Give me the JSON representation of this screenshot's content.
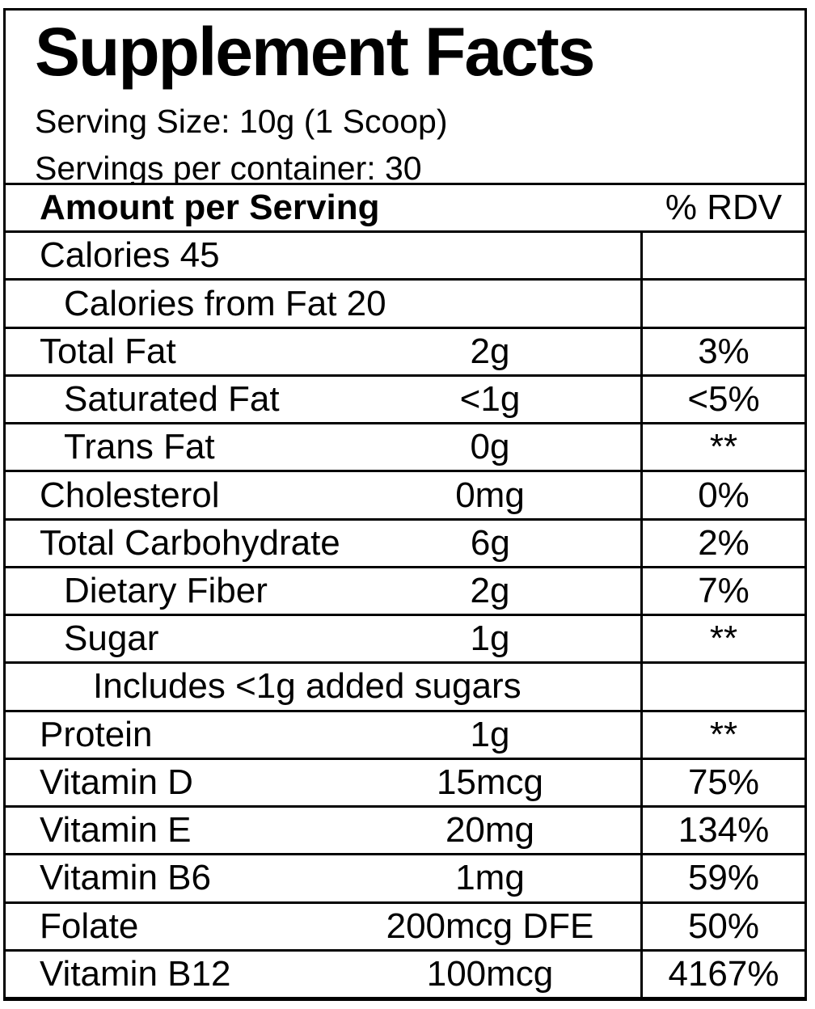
{
  "colors": {
    "text": "#000000",
    "background": "#ffffff",
    "border": "#000000"
  },
  "label": {
    "title": "Supplement Facts",
    "serving_size": "Serving Size: 10g (1 Scoop)",
    "servings_per_container": "Servings per container: 30"
  },
  "table": {
    "header": {
      "amount_col": "Amount per Serving",
      "rdv_col": "% RDV"
    },
    "rows": [
      {
        "name": "Calories 45",
        "amount": "",
        "rdv": "",
        "indent": 0
      },
      {
        "name": "Calories from Fat 20",
        "amount": "",
        "rdv": "",
        "indent": 1
      },
      {
        "name": "Total Fat",
        "amount": "2g",
        "rdv": "3%",
        "indent": 0
      },
      {
        "name": "Saturated Fat",
        "amount": "<1g",
        "rdv": "<5%",
        "indent": 1
      },
      {
        "name": "Trans Fat",
        "amount": "0g",
        "rdv": "**",
        "indent": 1
      },
      {
        "name": "Cholesterol",
        "amount": "0mg",
        "rdv": "0%",
        "indent": 0
      },
      {
        "name": "Total Carbohydrate",
        "amount": "6g",
        "rdv": "2%",
        "indent": 0
      },
      {
        "name": "Dietary Fiber",
        "amount": "2g",
        "rdv": "7%",
        "indent": 1
      },
      {
        "name": "Sugar",
        "amount": "1g",
        "rdv": "**",
        "indent": 1
      },
      {
        "name": "Includes <1g added sugars",
        "amount": "",
        "rdv": "",
        "indent": 2
      },
      {
        "name": "Protein",
        "amount": "1g",
        "rdv": "**",
        "indent": 0
      },
      {
        "name": "Vitamin D",
        "amount": "15mcg",
        "rdv": "75%",
        "indent": 0
      },
      {
        "name": "Vitamin E",
        "amount": "20mg",
        "rdv": "134%",
        "indent": 0
      },
      {
        "name": "Vitamin B6",
        "amount": "1mg",
        "rdv": "59%",
        "indent": 0
      },
      {
        "name": "Folate",
        "amount": "200mcg DFE",
        "rdv": "50%",
        "indent": 0
      },
      {
        "name": "Vitamin B12",
        "amount": "100mcg",
        "rdv": "4167%",
        "indent": 0
      }
    ]
  }
}
